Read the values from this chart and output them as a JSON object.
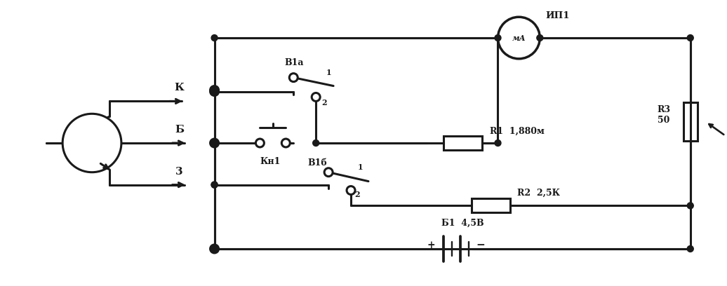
{
  "bg_color": "#ffffff",
  "line_color": "#1a1a1a",
  "line_width": 2.2,
  "fig_width": 10.36,
  "fig_height": 4.08,
  "labels": {
    "K": "К",
    "B": "Б",
    "E": "3",
    "B1a": "В1а",
    "B1b": "В1б",
    "Kn1": "Кн1",
    "R1": "R1  1,880м",
    "R2": "R2  2,5К",
    "R3": "R3\n50",
    "B1": "Б1  4,5В",
    "IP1": "ИП1",
    "uA": "мА"
  }
}
